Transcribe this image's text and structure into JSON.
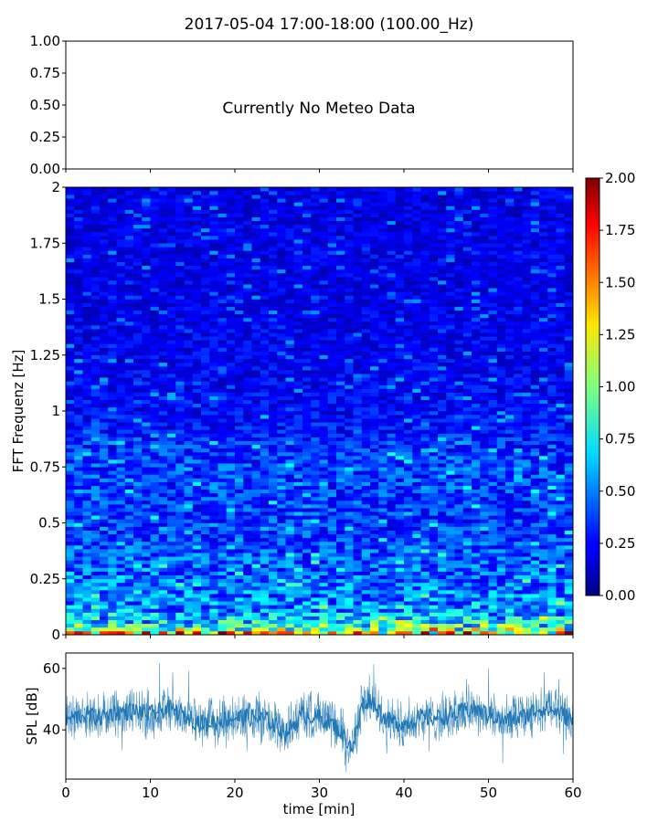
{
  "figure": {
    "title": "2017-05-04 17:00-18:00 (100.00_Hz)"
  },
  "chart_data": [
    {
      "type": "line",
      "role": "meteo-panel",
      "annotation": "Currently No Meteo Data",
      "ylim": [
        0,
        1
      ],
      "yticks": [
        "0.00",
        "0.25",
        "0.50",
        "0.75",
        "1.00"
      ],
      "xlim": [
        0,
        60
      ],
      "series": []
    },
    {
      "type": "heatmap",
      "role": "spectrogram",
      "ylabel": "FFT Frequenz [Hz]",
      "ylim": [
        0,
        2
      ],
      "yticks": [
        "0",
        "0.25",
        "0.5",
        "0.75",
        "1",
        "1.25",
        "1.5",
        "1.75",
        "2"
      ],
      "xlim": [
        0,
        60
      ],
      "colormap": "jet",
      "color_range": [
        0,
        2
      ],
      "colorbar_ticks": [
        "0.00",
        "0.25",
        "0.50",
        "0.75",
        "1.00",
        "1.25",
        "1.50",
        "1.75",
        "2.00"
      ],
      "levels_by_frequency": [
        {
          "f": 0.0,
          "level": 1.6
        },
        {
          "f": 0.02,
          "level": 1.0
        },
        {
          "f": 0.05,
          "level": 0.75
        },
        {
          "f": 0.1,
          "level": 0.55
        },
        {
          "f": 0.25,
          "level": 0.45
        },
        {
          "f": 0.5,
          "level": 0.35
        },
        {
          "f": 0.75,
          "level": 0.38
        },
        {
          "f": 1.0,
          "level": 0.25
        },
        {
          "f": 1.5,
          "level": 0.2
        },
        {
          "f": 2.0,
          "level": 0.2
        }
      ]
    },
    {
      "type": "line",
      "role": "spl-timeseries",
      "xlabel": "time [min]",
      "ylabel": "SPL [dB]",
      "xlim": [
        0,
        60
      ],
      "ylim": [
        24,
        65
      ],
      "xticks": [
        "0",
        "10",
        "20",
        "30",
        "40",
        "50",
        "60"
      ],
      "yticks": [
        "40",
        "60"
      ],
      "color": "#1f77b4",
      "series": [
        {
          "x": [
            0,
            2,
            4,
            6,
            8,
            10,
            12,
            14,
            16,
            18,
            20,
            22,
            24,
            26,
            28,
            30,
            32,
            34,
            35,
            36,
            38,
            40,
            42,
            44,
            46,
            48,
            50,
            52,
            54,
            56,
            58,
            60
          ],
          "y": [
            43,
            45,
            44,
            46,
            46,
            45,
            47,
            45,
            42,
            43,
            44,
            44,
            43,
            39,
            45,
            44,
            41,
            34,
            48,
            50,
            43,
            42,
            44,
            44,
            45,
            47,
            45,
            43,
            44,
            47,
            46,
            43
          ]
        }
      ]
    }
  ]
}
